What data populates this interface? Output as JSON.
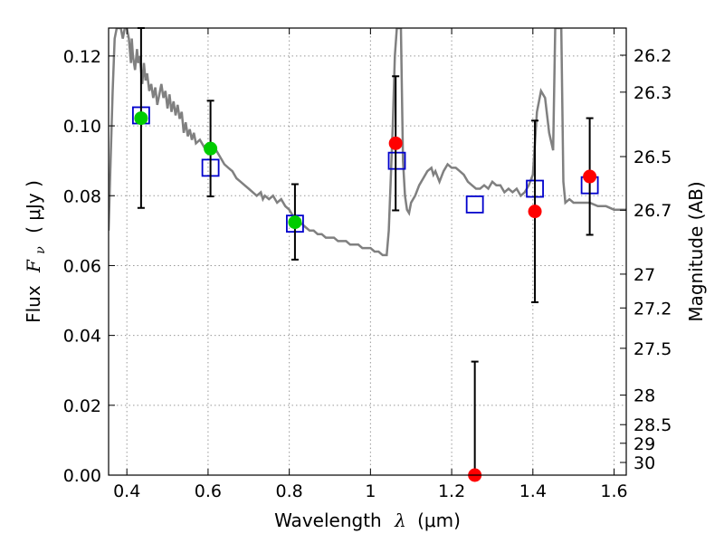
{
  "chart_data": {
    "type": "scatter",
    "xlabel": "Wavelength",
    "xlabel_math": "λ",
    "xlabel_unit": "(μm)",
    "ylabel": "Flux",
    "ylabel_math": "F",
    "ylabel_sub": "ν",
    "ylabel_unit": "( μJy )",
    "y2label": "Magnitude (AB)",
    "xlim": [
      0.355,
      1.63
    ],
    "ylim": [
      0.0,
      0.128
    ],
    "grid": true,
    "x_ticks": [
      {
        "value": 0.4,
        "label": "0.4"
      },
      {
        "value": 0.6,
        "label": "0.6"
      },
      {
        "value": 0.8,
        "label": "0.8"
      },
      {
        "value": 1.0,
        "label": "1"
      },
      {
        "value": 1.2,
        "label": "1.2"
      },
      {
        "value": 1.4,
        "label": "1.4"
      },
      {
        "value": 1.6,
        "label": "1.6"
      }
    ],
    "y_ticks": [
      {
        "value": 0.0,
        "label": "0.00"
      },
      {
        "value": 0.02,
        "label": "0.02"
      },
      {
        "value": 0.04,
        "label": "0.04"
      },
      {
        "value": 0.06,
        "label": "0.06"
      },
      {
        "value": 0.08,
        "label": "0.08"
      },
      {
        "value": 0.1,
        "label": "0.10"
      },
      {
        "value": 0.12,
        "label": "0.12"
      }
    ],
    "mag_ticks": [
      {
        "value": 26.2,
        "label": "26.2"
      },
      {
        "value": 26.3,
        "label": "26.3"
      },
      {
        "value": 26.5,
        "label": "26.5"
      },
      {
        "value": 26.7,
        "label": "26.7"
      },
      {
        "value": 27.0,
        "label": "27"
      },
      {
        "value": 27.2,
        "label": "27.2"
      },
      {
        "value": 27.5,
        "label": "27.5"
      },
      {
        "value": 28.0,
        "label": "28"
      },
      {
        "value": 28.5,
        "label": "28.5"
      },
      {
        "value": 29.0,
        "label": "29"
      },
      {
        "value": 30.0,
        "label": "30"
      }
    ],
    "measured_points": [
      {
        "x": 0.435,
        "y": 0.1022,
        "yerr_low": 0.0765,
        "yerr_high": 0.128,
        "color": "#00cc00"
      },
      {
        "x": 0.606,
        "y": 0.0935,
        "yerr_low": 0.0798,
        "yerr_high": 0.1072,
        "color": "#00cc00"
      },
      {
        "x": 0.814,
        "y": 0.0724,
        "yerr_low": 0.0617,
        "yerr_high": 0.0833,
        "color": "#00cc00"
      },
      {
        "x": 1.062,
        "y": 0.095,
        "yerr_low": 0.0758,
        "yerr_high": 0.1142,
        "color": "#ff0000"
      },
      {
        "x": 1.257,
        "y": 0.0,
        "yerr_low": 0.0,
        "yerr_high": 0.0325,
        "color": "#ff0000"
      },
      {
        "x": 1.405,
        "y": 0.0755,
        "yerr_low": 0.0495,
        "yerr_high": 0.1015,
        "color": "#ff0000"
      },
      {
        "x": 1.54,
        "y": 0.0855,
        "yerr_low": 0.0688,
        "yerr_high": 0.1022,
        "color": "#ff0000"
      }
    ],
    "model_points": [
      {
        "x": 0.435,
        "y": 0.103
      },
      {
        "x": 0.606,
        "y": 0.088
      },
      {
        "x": 0.814,
        "y": 0.072
      },
      {
        "x": 1.065,
        "y": 0.09
      },
      {
        "x": 1.257,
        "y": 0.0775
      },
      {
        "x": 1.405,
        "y": 0.082
      },
      {
        "x": 1.54,
        "y": 0.083
      }
    ],
    "model_spectrum": [
      [
        0.355,
        0.07
      ],
      [
        0.36,
        0.09
      ],
      [
        0.365,
        0.11
      ],
      [
        0.37,
        0.125
      ],
      [
        0.375,
        0.128
      ],
      [
        0.38,
        0.128
      ],
      [
        0.385,
        0.128
      ],
      [
        0.39,
        0.125
      ],
      [
        0.395,
        0.128
      ],
      [
        0.4,
        0.128
      ],
      [
        0.405,
        0.125
      ],
      [
        0.41,
        0.118
      ],
      [
        0.412,
        0.125
      ],
      [
        0.415,
        0.12
      ],
      [
        0.42,
        0.116
      ],
      [
        0.425,
        0.122
      ],
      [
        0.428,
        0.118
      ],
      [
        0.432,
        0.12
      ],
      [
        0.438,
        0.112
      ],
      [
        0.442,
        0.118
      ],
      [
        0.446,
        0.113
      ],
      [
        0.45,
        0.115
      ],
      [
        0.455,
        0.11
      ],
      [
        0.46,
        0.112
      ],
      [
        0.465,
        0.108
      ],
      [
        0.47,
        0.111
      ],
      [
        0.475,
        0.106
      ],
      [
        0.48,
        0.109
      ],
      [
        0.485,
        0.112
      ],
      [
        0.49,
        0.108
      ],
      [
        0.495,
        0.11
      ],
      [
        0.5,
        0.105
      ],
      [
        0.505,
        0.109
      ],
      [
        0.51,
        0.104
      ],
      [
        0.515,
        0.107
      ],
      [
        0.52,
        0.103
      ],
      [
        0.525,
        0.106
      ],
      [
        0.53,
        0.102
      ],
      [
        0.535,
        0.104
      ],
      [
        0.54,
        0.098
      ],
      [
        0.545,
        0.101
      ],
      [
        0.55,
        0.097
      ],
      [
        0.555,
        0.099
      ],
      [
        0.56,
        0.096
      ],
      [
        0.565,
        0.098
      ],
      [
        0.57,
        0.095
      ],
      [
        0.58,
        0.096
      ],
      [
        0.59,
        0.094
      ],
      [
        0.6,
        0.095
      ],
      [
        0.61,
        0.094
      ],
      [
        0.62,
        0.093
      ],
      [
        0.63,
        0.091
      ],
      [
        0.64,
        0.089
      ],
      [
        0.65,
        0.088
      ],
      [
        0.66,
        0.087
      ],
      [
        0.67,
        0.085
      ],
      [
        0.68,
        0.084
      ],
      [
        0.69,
        0.083
      ],
      [
        0.7,
        0.082
      ],
      [
        0.71,
        0.081
      ],
      [
        0.72,
        0.08
      ],
      [
        0.73,
        0.081
      ],
      [
        0.735,
        0.079
      ],
      [
        0.74,
        0.08
      ],
      [
        0.75,
        0.079
      ],
      [
        0.76,
        0.08
      ],
      [
        0.77,
        0.078
      ],
      [
        0.78,
        0.079
      ],
      [
        0.79,
        0.077
      ],
      [
        0.8,
        0.076
      ],
      [
        0.805,
        0.075
      ],
      [
        0.81,
        0.074
      ],
      [
        0.82,
        0.073
      ],
      [
        0.83,
        0.072
      ],
      [
        0.84,
        0.071
      ],
      [
        0.85,
        0.07
      ],
      [
        0.86,
        0.07
      ],
      [
        0.87,
        0.069
      ],
      [
        0.88,
        0.069
      ],
      [
        0.89,
        0.068
      ],
      [
        0.9,
        0.068
      ],
      [
        0.91,
        0.068
      ],
      [
        0.92,
        0.067
      ],
      [
        0.93,
        0.067
      ],
      [
        0.94,
        0.067
      ],
      [
        0.95,
        0.066
      ],
      [
        0.96,
        0.066
      ],
      [
        0.97,
        0.066
      ],
      [
        0.98,
        0.065
      ],
      [
        0.99,
        0.065
      ],
      [
        1.0,
        0.065
      ],
      [
        1.01,
        0.064
      ],
      [
        1.02,
        0.064
      ],
      [
        1.03,
        0.063
      ],
      [
        1.04,
        0.063
      ],
      [
        1.045,
        0.07
      ],
      [
        1.05,
        0.085
      ],
      [
        1.055,
        0.1
      ],
      [
        1.06,
        0.12
      ],
      [
        1.065,
        0.128
      ],
      [
        1.075,
        0.128
      ],
      [
        1.08,
        0.09
      ],
      [
        1.085,
        0.08
      ],
      [
        1.09,
        0.076
      ],
      [
        1.095,
        0.075
      ],
      [
        1.1,
        0.078
      ],
      [
        1.11,
        0.08
      ],
      [
        1.12,
        0.083
      ],
      [
        1.13,
        0.085
      ],
      [
        1.14,
        0.087
      ],
      [
        1.15,
        0.088
      ],
      [
        1.155,
        0.086
      ],
      [
        1.16,
        0.087
      ],
      [
        1.17,
        0.084
      ],
      [
        1.18,
        0.087
      ],
      [
        1.19,
        0.089
      ],
      [
        1.2,
        0.088
      ],
      [
        1.21,
        0.088
      ],
      [
        1.22,
        0.087
      ],
      [
        1.23,
        0.086
      ],
      [
        1.24,
        0.084
      ],
      [
        1.25,
        0.083
      ],
      [
        1.26,
        0.082
      ],
      [
        1.27,
        0.082
      ],
      [
        1.28,
        0.083
      ],
      [
        1.29,
        0.082
      ],
      [
        1.3,
        0.084
      ],
      [
        1.31,
        0.083
      ],
      [
        1.32,
        0.083
      ],
      [
        1.33,
        0.081
      ],
      [
        1.34,
        0.082
      ],
      [
        1.35,
        0.081
      ],
      [
        1.36,
        0.082
      ],
      [
        1.37,
        0.08
      ],
      [
        1.38,
        0.081
      ],
      [
        1.39,
        0.083
      ],
      [
        1.4,
        0.086
      ],
      [
        1.41,
        0.104
      ],
      [
        1.42,
        0.11
      ],
      [
        1.43,
        0.108
      ],
      [
        1.44,
        0.098
      ],
      [
        1.45,
        0.093
      ],
      [
        1.455,
        0.128
      ],
      [
        1.465,
        0.128
      ],
      [
        1.47,
        0.128
      ],
      [
        1.475,
        0.084
      ],
      [
        1.48,
        0.078
      ],
      [
        1.49,
        0.079
      ],
      [
        1.5,
        0.078
      ],
      [
        1.52,
        0.078
      ],
      [
        1.54,
        0.078
      ],
      [
        1.56,
        0.077
      ],
      [
        1.58,
        0.077
      ],
      [
        1.6,
        0.076
      ],
      [
        1.63,
        0.076
      ]
    ],
    "colors": {
      "spectrum": "#808080",
      "model_marker": "#0000cc",
      "errorbar": "#000000",
      "grid": "#999999"
    }
  }
}
